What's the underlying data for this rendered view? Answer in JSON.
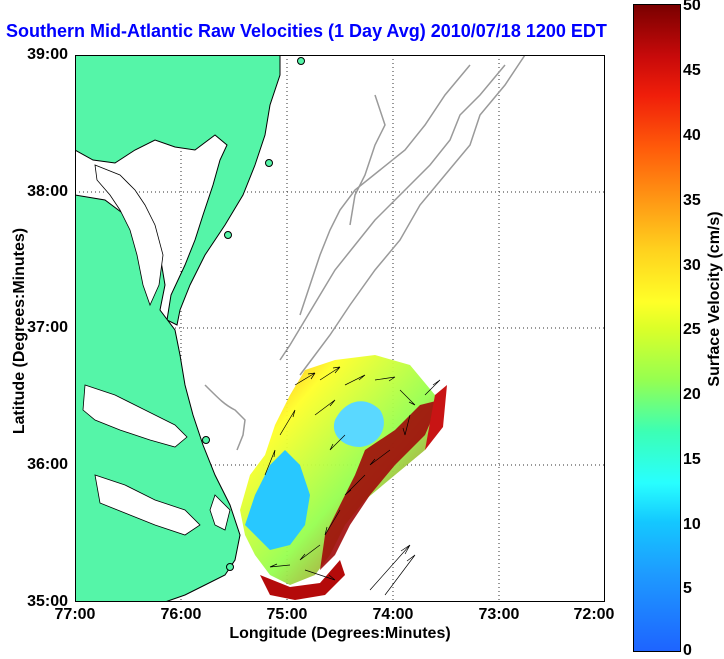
{
  "title": "Southern Mid-Atlantic Raw Velocities (1 Day Avg) 2010/07/18 1200 EDT",
  "chart": {
    "type": "map",
    "xlabel": "Longitude (Degrees:Minutes)",
    "ylabel": "Latitude (Degrees:Minutes)",
    "xticks": [
      "77:00",
      "76:00",
      "75:00",
      "74:00",
      "73:00",
      "72:00"
    ],
    "yticks": [
      "39:00",
      "38:00",
      "37:00",
      "36:00",
      "35:00"
    ],
    "grid": "dotted",
    "land_color": "#55f5a8"
  },
  "colorbar": {
    "label": "Surface Velocity (cm/s)",
    "ticks": [
      "50",
      "45",
      "40",
      "35",
      "30",
      "25",
      "20",
      "15",
      "10",
      "5",
      "0"
    ],
    "range": [
      0,
      50
    ]
  }
}
